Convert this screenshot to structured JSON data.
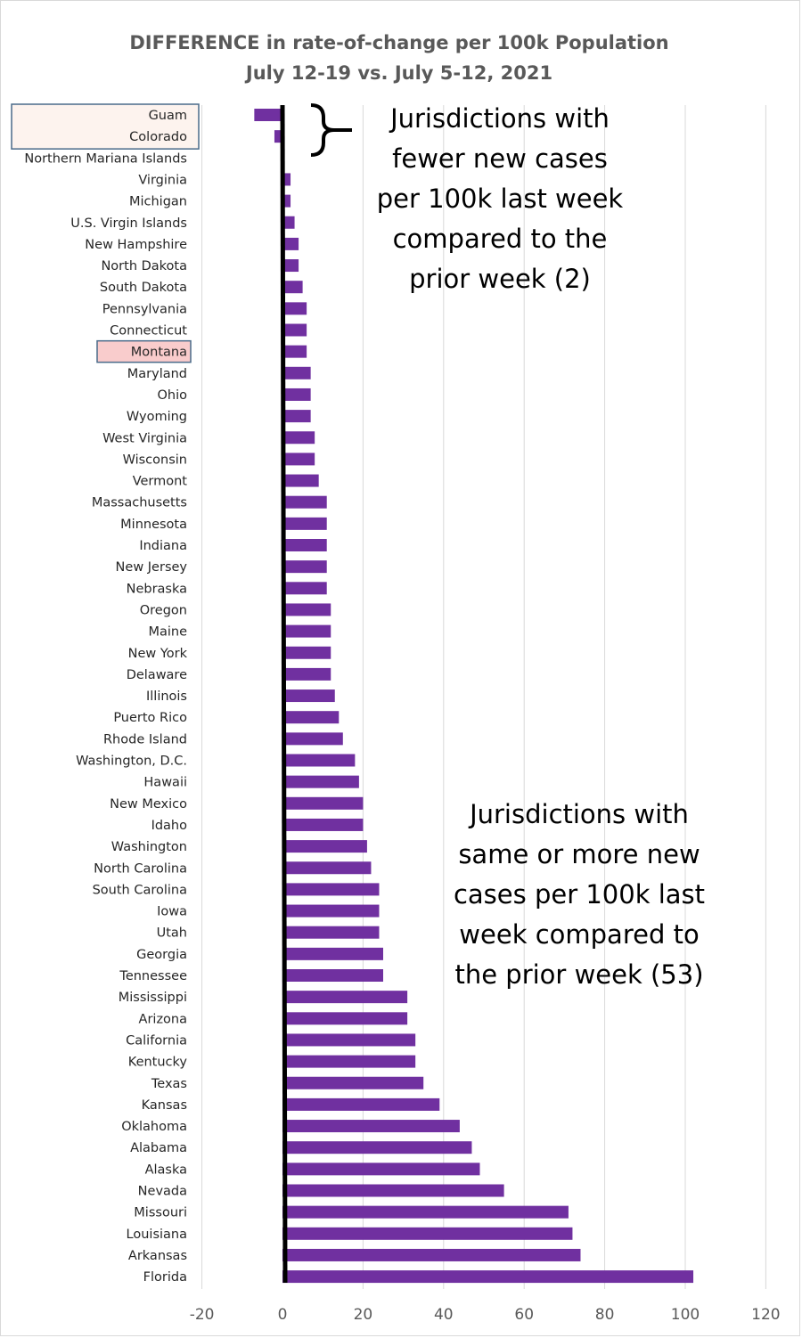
{
  "chart_data": {
    "type": "bar",
    "orientation": "horizontal",
    "title": "DIFFERENCE in rate-of-change per 100k Population",
    "subtitle": "July 12-19 vs. July 5-12, 2021",
    "xlabel": "",
    "ylabel": "",
    "xlim": [
      -20,
      120
    ],
    "xticks": [
      -20,
      0,
      20,
      40,
      60,
      80,
      100,
      120
    ],
    "grid": true,
    "bar_color": "#7030a0",
    "axis_line_color": "#000000",
    "categories": [
      "Guam",
      "Colorado",
      "Northern Mariana Islands",
      "Virginia",
      "Michigan",
      "U.S. Virgin Islands",
      "New Hampshire",
      "North Dakota",
      "South Dakota",
      "Pennsylvania",
      "Connecticut",
      "Montana",
      "Maryland",
      "Ohio",
      "Wyoming",
      "West Virginia",
      "Wisconsin",
      "Vermont",
      "Massachusetts",
      "Minnesota",
      "Indiana",
      "New Jersey",
      "Nebraska",
      "Oregon",
      "Maine",
      "New York",
      "Delaware",
      "Illinois",
      "Puerto Rico",
      "Rhode Island",
      "Washington, D.C.",
      "Hawaii",
      "New Mexico",
      "Idaho",
      "Washington",
      "North Carolina",
      "South Carolina",
      "Iowa",
      "Utah",
      "Georgia",
      "Tennessee",
      "Mississippi",
      "Arizona",
      "California",
      "Kentucky",
      "Texas",
      "Kansas",
      "Oklahoma",
      "Alabama",
      "Alaska",
      "Nevada",
      "Missouri",
      "Louisiana",
      "Arkansas",
      "Florida"
    ],
    "values": [
      -7,
      -2,
      0,
      2,
      2,
      3,
      4,
      4,
      5,
      6,
      6,
      6,
      7,
      7,
      7,
      8,
      8,
      9,
      11,
      11,
      11,
      11,
      11,
      12,
      12,
      12,
      12,
      13,
      14,
      15,
      18,
      19,
      20,
      20,
      21,
      22,
      24,
      24,
      24,
      25,
      25,
      31,
      31,
      33,
      33,
      35,
      39,
      44,
      47,
      49,
      55,
      71,
      72,
      74,
      102
    ],
    "highlighted": [
      {
        "category": "Guam",
        "fill": "#fdf3ee",
        "border": "#4a6b8a"
      },
      {
        "category": "Colorado",
        "fill": "#fdf3ee",
        "border": "#4a6b8a"
      },
      {
        "category": "Montana",
        "fill": "#f9cccc",
        "border": "#4a6b8a"
      }
    ],
    "annotations": {
      "fewer": {
        "lines": [
          "Jurisdictions with",
          "fewer new cases",
          "per 100k last week",
          "compared to the",
          "prior week (2)"
        ]
      },
      "more": {
        "lines": [
          "Jurisdictions with",
          "same or more new",
          "cases per 100k last",
          "week compared to",
          "the prior week (53)"
        ]
      }
    }
  }
}
